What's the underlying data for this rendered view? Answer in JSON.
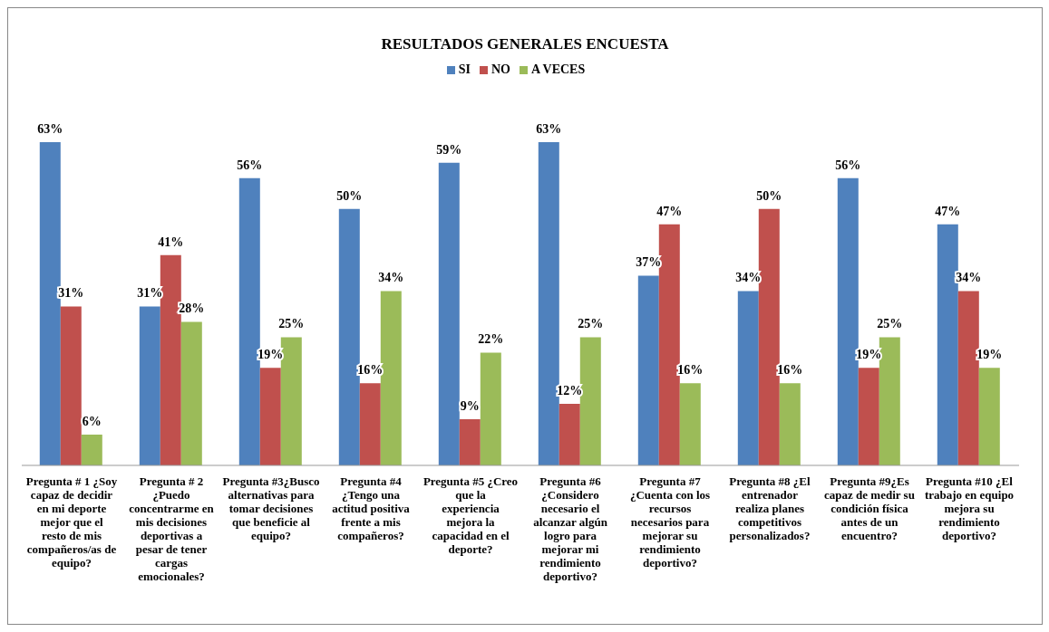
{
  "chart_data": {
    "type": "bar",
    "title": "RESULTADOS GENERALES ENCUESTA",
    "legend": "top",
    "grid": false,
    "categories": [
      "Pregunta # 1 ¿Soy capaz de decidir en mi deporte mejor que el resto de mis compañeros/as de equipo?",
      "Pregunta # 2 ¿Puedo concentrarme en mis decisiones deportivas a pesar de tener cargas emocionales?",
      "Pregunta #3¿Busco alternativas para tomar decisiones que beneficie al equipo?",
      "Pregunta #4 ¿Tengo una actitud positiva frente a mis compañeros?",
      "Pregunta #5 ¿Creo que la experiencia mejora la capacidad en el deporte?",
      "Pregunta #6 ¿Considero necesario el alcanzar algún logro para mejorar mi rendimiento deportivo?",
      "Pregunta #7 ¿Cuenta con los recursos necesarios para mejorar su rendimiento deportivo?",
      "Pregunta #8 ¿El entrenador realiza planes competitivos personalizados?",
      "Pregunta #9¿Es capaz de medir su condición física antes de un encuentro?",
      "Pregunta #10 ¿El trabajo en equipo mejora su rendimiento deportivo?"
    ],
    "series": [
      {
        "name": "SI",
        "color": "#4f81bd",
        "values": [
          63,
          31,
          56,
          50,
          59,
          63,
          37,
          34,
          56,
          47
        ],
        "value_labels": [
          "63%",
          "31%",
          "56%",
          "50%",
          "59%",
          "63%",
          "37%",
          "34%",
          "56%",
          "47%"
        ]
      },
      {
        "name": "NO",
        "color": "#c0504d",
        "values": [
          31,
          41,
          19,
          16,
          9,
          12,
          47,
          50,
          19,
          34
        ],
        "value_labels": [
          "31%",
          "41%",
          "19%",
          "16%",
          "9%",
          "12%",
          "47%",
          "50%",
          "19%",
          "34%"
        ]
      },
      {
        "name": "A VECES",
        "color": "#9bbb59",
        "values": [
          6,
          28,
          25,
          34,
          22,
          25,
          16,
          16,
          25,
          19
        ],
        "value_labels": [
          "6%",
          "28%",
          "25%",
          "34%",
          "22%",
          "25%",
          "16%",
          "16%",
          "25%",
          "19%"
        ]
      }
    ]
  }
}
